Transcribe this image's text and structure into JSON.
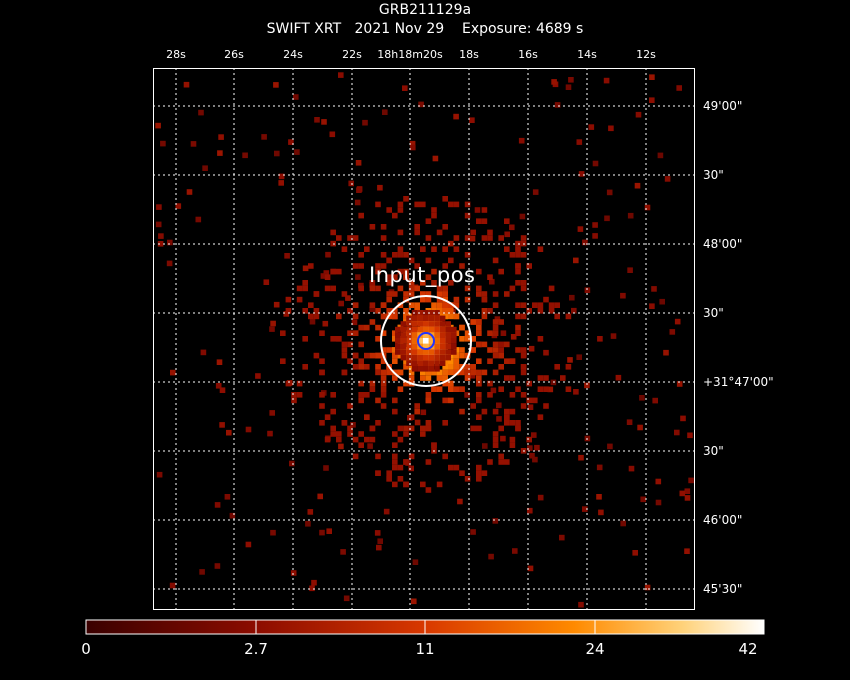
{
  "header": {
    "object": "GRB211129a",
    "subtitle": "SWIFT XRT   2021 Nov 29    Exposure: 4689 s"
  },
  "ra_ticks": [
    "28s",
    "26s",
    "24s",
    "22s",
    "18h18m20s",
    "18s",
    "16s",
    "14s",
    "12s"
  ],
  "dec_ticks": [
    "49'00\"",
    "30\"",
    "48'00\"",
    "30\"",
    "+31°47'00\"",
    "30\"",
    "46'00\"",
    "45'30\""
  ],
  "source_label": "Input_pos",
  "colorbar": {
    "labels": [
      "0",
      "2.7",
      "11",
      "24",
      "42"
    ],
    "colors": [
      "#3a0000",
      "#8c0c00",
      "#d83800",
      "#ff8a00",
      "#ffd27a",
      "#ffffff"
    ]
  },
  "region_colors": {
    "outer": "#ffffff",
    "inner": "#2233ff"
  }
}
